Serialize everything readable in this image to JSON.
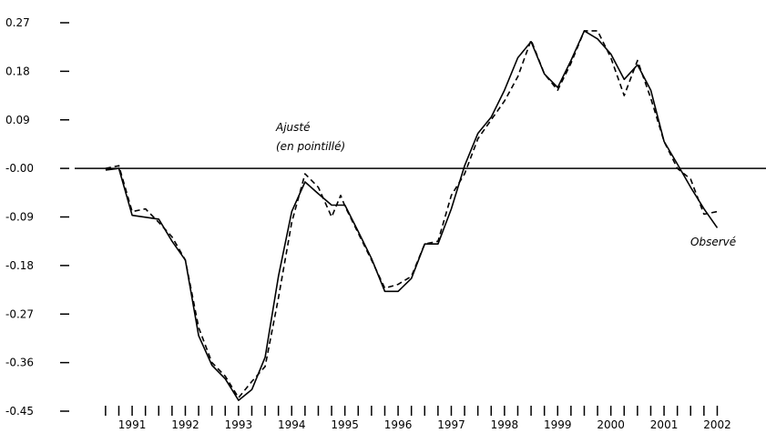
{
  "chart_data": {
    "type": "line",
    "title": "",
    "xlabel": "",
    "ylabel": "",
    "ylim": [
      -0.45,
      0.27
    ],
    "xlim": [
      1990.0,
      2002.5
    ],
    "y_ticks": [
      "0.27",
      "0.18",
      "0.09",
      "-0.00",
      "-0.09",
      "-0.18",
      "-0.27",
      "-0.36",
      "-0.45"
    ],
    "x_ticks": [
      "1991",
      "1992",
      "1993",
      "1994",
      "1995",
      "1996",
      "1997",
      "1998",
      "1999",
      "2000",
      "2001",
      "2002"
    ],
    "grid": false,
    "reference_line": 0,
    "annotations": {
      "fitted": "Ajusté",
      "fitted_note": "(en pointillé)",
      "observed": "Observé"
    },
    "series": [
      {
        "style": "solid",
        "x": [
          1990.58,
          1990.83,
          1991.08,
          1991.58,
          1991.83,
          1992.08,
          1992.33,
          1992.58,
          1992.83,
          1993.08,
          1993.33,
          1993.58,
          1993.83,
          1994.08,
          1994.33,
          1994.58,
          1994.83,
          1995.08,
          1995.33,
          1995.58,
          1995.83,
          1996.08,
          1996.33,
          1996.58,
          1996.83,
          1997.08,
          1997.33,
          1997.58,
          1997.83,
          1998.08,
          1998.33,
          1998.58,
          1998.83,
          1999.08,
          1999.33,
          1999.58,
          1999.83,
          2000.08,
          2000.33,
          2000.58,
          2000.83,
          2001.08,
          2001.33,
          2001.58,
          2001.83,
          2002.08
        ],
        "y": [
          -0.003,
          0.0,
          -0.087,
          -0.094,
          -0.135,
          -0.17,
          -0.31,
          -0.365,
          -0.39,
          -0.43,
          -0.41,
          -0.35,
          -0.2,
          -0.08,
          -0.025,
          -0.047,
          -0.068,
          -0.068,
          -0.117,
          -0.167,
          -0.228,
          -0.228,
          -0.204,
          -0.14,
          -0.14,
          -0.075,
          0.005,
          0.065,
          0.095,
          0.145,
          0.205,
          0.235,
          0.175,
          0.15,
          0.2,
          0.255,
          0.24,
          0.212,
          0.165,
          0.192,
          0.145,
          0.05,
          0.008,
          -0.035,
          -0.075,
          -0.11
        ]
      },
      {
        "style": "dashed",
        "x": [
          1990.58,
          1990.83,
          1991.08,
          1991.33,
          1991.58,
          1991.83,
          1992.08,
          1992.33,
          1992.58,
          1992.83,
          1993.08,
          1993.33,
          1993.58,
          1993.83,
          1994.08,
          1994.33,
          1994.58,
          1994.83,
          1995.0,
          1995.08,
          1995.33,
          1995.58,
          1995.83,
          1996.08,
          1996.33,
          1996.58,
          1996.83,
          1997.08,
          1997.33,
          1997.58,
          1997.83,
          1998.08,
          1998.33,
          1998.58,
          1998.83,
          1999.08,
          1999.33,
          1999.58,
          1999.83,
          2000.08,
          2000.33,
          2000.58,
          2000.83,
          2001.08,
          2001.33,
          2001.58,
          2001.83,
          2002.08
        ],
        "y": [
          0.0,
          0.005,
          -0.08,
          -0.075,
          -0.1,
          -0.127,
          -0.17,
          -0.295,
          -0.36,
          -0.385,
          -0.425,
          -0.395,
          -0.367,
          -0.24,
          -0.1,
          -0.01,
          -0.035,
          -0.09,
          -0.05,
          -0.07,
          -0.12,
          -0.17,
          -0.222,
          -0.215,
          -0.2,
          -0.14,
          -0.135,
          -0.05,
          -0.01,
          0.055,
          0.09,
          0.125,
          0.17,
          0.238,
          0.175,
          0.145,
          0.195,
          0.255,
          0.255,
          0.205,
          0.135,
          0.2,
          0.13,
          0.05,
          0.0,
          -0.02,
          -0.085,
          -0.08
        ]
      }
    ]
  }
}
